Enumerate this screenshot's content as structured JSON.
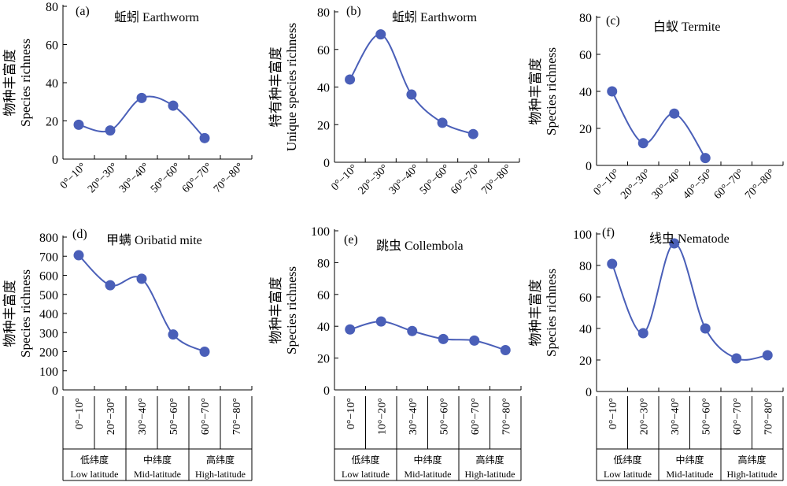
{
  "chart_data": [
    {
      "type": "line",
      "letter": "(a)",
      "title": "蚯蚓 Earthworm",
      "ylabel_cn": "物种丰富度",
      "ylabel_en": "Species richness",
      "ylim": [
        0,
        80
      ],
      "yticks": [
        0,
        20,
        40,
        60,
        80
      ],
      "categories": [
        "0°−10°",
        "20°−30°",
        "30°−40°",
        "50°−60°",
        "60°−70°",
        "70°−80°"
      ],
      "series": [
        {
          "values": [
            18,
            15,
            32,
            28,
            11,
            null
          ]
        }
      ],
      "groups": []
    },
    {
      "type": "line",
      "letter": "(b)",
      "title": "蚯蚓 Earthworm",
      "ylabel_cn": "特有种丰富度",
      "ylabel_en": "Unique species richness",
      "ylim": [
        0,
        80
      ],
      "yticks": [
        0,
        20,
        40,
        60,
        80
      ],
      "categories": [
        "0°−10°",
        "20°−30°",
        "30°−40°",
        "50°−60°",
        "60°−70°",
        "70°−80°"
      ],
      "series": [
        {
          "values": [
            44,
            68,
            36,
            21,
            15,
            null
          ]
        }
      ],
      "groups": []
    },
    {
      "type": "line",
      "letter": "(c)",
      "title": "白蚁 Termite",
      "ylabel_cn": "物种丰富度",
      "ylabel_en": "Species richness",
      "ylim": [
        0,
        80
      ],
      "yticks": [
        0,
        20,
        40,
        60,
        80
      ],
      "categories": [
        "0°−10°",
        "20°−30°",
        "30°−40°",
        "40°−50°",
        "60°−70°",
        "70°−80°"
      ],
      "series": [
        {
          "values": [
            40,
            12,
            28,
            4,
            null,
            null
          ]
        }
      ],
      "groups": []
    },
    {
      "type": "line",
      "letter": "(d)",
      "title": "甲螨 Oribatid mite",
      "ylabel_cn": "物种丰富度",
      "ylabel_en": "Species richness",
      "ylim": [
        0,
        800
      ],
      "yticks": [
        0,
        100,
        200,
        300,
        400,
        500,
        600,
        700,
        800
      ],
      "categories": [
        "0°−10°",
        "20°−30°",
        "30°−40°",
        "50°−60°",
        "60°−70°",
        "70°−80°"
      ],
      "series": [
        {
          "values": [
            705,
            548,
            582,
            290,
            200,
            null
          ]
        }
      ],
      "groups": [
        {
          "cn": "低纬度",
          "en": "Low latitude",
          "span": [
            0,
            2
          ]
        },
        {
          "cn": "中纬度",
          "en": "Mid-latitude",
          "span": [
            2,
            4
          ]
        },
        {
          "cn": "高纬度",
          "en": "High-latitude",
          "span": [
            4,
            6
          ]
        }
      ]
    },
    {
      "type": "line",
      "letter": "(e)",
      "title": "跳虫 Collembola",
      "ylabel_cn": "物种丰富度",
      "ylabel_en": "Species richness",
      "ylim": [
        0,
        100
      ],
      "yticks": [
        0,
        20,
        40,
        60,
        80,
        100
      ],
      "categories": [
        "0°−10°",
        "10°−20°",
        "30°−40°",
        "50°−60°",
        "60°−70°",
        "70°−80°"
      ],
      "series": [
        {
          "values": [
            38,
            43,
            37,
            32,
            31,
            25
          ]
        }
      ],
      "groups": [
        {
          "cn": "低纬度",
          "en": "Low latitude",
          "span": [
            0,
            2
          ]
        },
        {
          "cn": "中纬度",
          "en": "Mid-latitude",
          "span": [
            2,
            4
          ]
        },
        {
          "cn": "高纬度",
          "en": "High-latitude",
          "span": [
            4,
            6
          ]
        }
      ]
    },
    {
      "type": "line",
      "letter": "(f)",
      "title": "线虫 Nematode",
      "ylabel_cn": "物种丰富度",
      "ylabel_en": "Species richness",
      "ylim": [
        0,
        100
      ],
      "yticks": [
        0,
        20,
        40,
        60,
        80,
        100
      ],
      "categories": [
        "0°−10°",
        "20°−30°",
        "30°−40°",
        "50°−60°",
        "60°−70°",
        "70°−80°"
      ],
      "series": [
        {
          "values": [
            81,
            37,
            94,
            40,
            21,
            23
          ]
        }
      ],
      "groups": [
        {
          "cn": "低纬度",
          "en": "Low latitude",
          "span": [
            0,
            2
          ]
        },
        {
          "cn": "中纬度",
          "en": "Mid-latitude",
          "span": [
            2,
            4
          ]
        },
        {
          "cn": "高纬度",
          "en": "High-latitude",
          "span": [
            4,
            6
          ]
        }
      ]
    }
  ]
}
